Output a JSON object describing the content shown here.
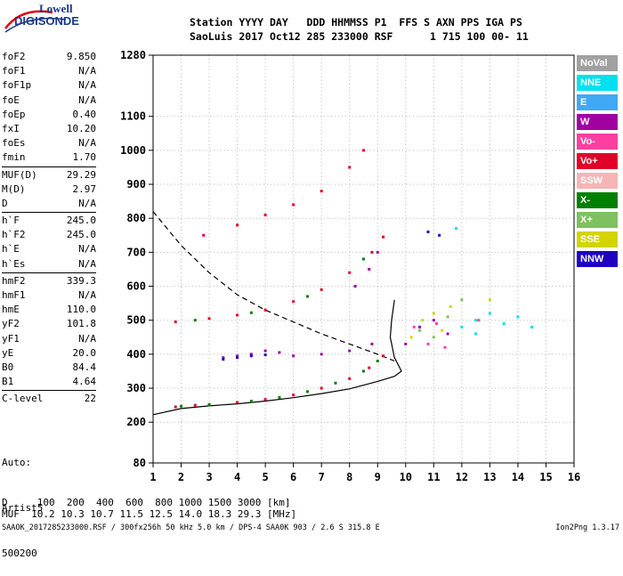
{
  "logo": {
    "line1": "Lowell",
    "line2": "DIGISONDE"
  },
  "header": {
    "line1": "Station YYYY DAY   DDD HHMMSS P1  FFS S AXN PPS IGA PS",
    "line2": "SaoLuis 2017 Oct12 285 233000 RSF      1 715 100 00- 11"
  },
  "params": [
    [
      [
        "foF2",
        "9.850"
      ],
      [
        "foF1",
        "N/A"
      ],
      [
        "foF1p",
        "N/A"
      ],
      [
        "foE",
        "N/A"
      ],
      [
        "foEp",
        "0.40"
      ],
      [
        "fxI",
        "10.20"
      ],
      [
        "foEs",
        "N/A"
      ],
      [
        "fmin",
        "1.70"
      ]
    ],
    [
      [
        "MUF(D)",
        "29.29"
      ],
      [
        "M(D)",
        "2.97"
      ],
      [
        "D",
        "N/A"
      ]
    ],
    [
      [
        "h`F",
        "245.0"
      ],
      [
        "h`F2",
        "245.0"
      ],
      [
        "h`E",
        "N/A"
      ],
      [
        "h`Es",
        "N/A"
      ]
    ],
    [
      [
        "hmF2",
        "339.3"
      ],
      [
        "hmF1",
        "N/A"
      ],
      [
        "hmE",
        "110.0"
      ],
      [
        "yF2",
        "101.8"
      ],
      [
        "yF1",
        "N/A"
      ],
      [
        "yE",
        "20.0"
      ],
      [
        "B0",
        "84.4"
      ],
      [
        "B1",
        "4.64"
      ]
    ],
    [
      [
        "C-level",
        "22"
      ]
    ]
  ],
  "footer_text": {
    "line1": "Auto:",
    "line2": "Artist5",
    "line3": "500200"
  },
  "legend": [
    {
      "label": "NoVal",
      "color": "#a0a0a0"
    },
    {
      "label": "NNE",
      "color": "#00e0f0"
    },
    {
      "label": "E",
      "color": "#3fa9f5"
    },
    {
      "label": "W",
      "color": "#a000a0"
    },
    {
      "label": "Vo-",
      "color": "#ff3fa0"
    },
    {
      "label": "Vo+",
      "color": "#e0002a"
    },
    {
      "label": "SSW",
      "color": "#f5b5b5"
    },
    {
      "label": "X-",
      "color": "#008000"
    },
    {
      "label": "X+",
      "color": "#80c060"
    },
    {
      "label": "SSE",
      "color": "#d4d400"
    },
    {
      "label": "NNW",
      "color": "#2000c0"
    }
  ],
  "muf_table": {
    "d_line": "D     100  200  400  600  800 1000 1500 3000 [km]",
    "muf_line": "MUF  10.2 10.3 10.7 11.5 12.5 14.0 18.3 29.3 [MHz]"
  },
  "status_left": "SAAOK_2017285233000.RSF / 300fx256h 50 kHz 5.0 km / DPS-4 SAA0K 903 / 2.6 S 315.8 E",
  "status_right": "Ion2Png 1.3.17",
  "chart_data": {
    "type": "scatter",
    "xlim": [
      1,
      16
    ],
    "ylim": [
      80,
      1280
    ],
    "x_ticks": [
      1,
      2,
      3,
      4,
      5,
      6,
      7,
      8,
      9,
      10,
      11,
      12,
      13,
      14,
      15,
      16
    ],
    "y_ticks": [
      80,
      200,
      300,
      400,
      500,
      600,
      700,
      800,
      900,
      1000,
      1100,
      1280
    ],
    "grid": "dotted",
    "series": [
      {
        "name": "Vo+",
        "color": "#e0002a",
        "points": [
          [
            1.8,
            245
          ],
          [
            2.5,
            250
          ],
          [
            3,
            252
          ],
          [
            4,
            258
          ],
          [
            5,
            267
          ],
          [
            6,
            280
          ],
          [
            7,
            300
          ],
          [
            8,
            328
          ],
          [
            8.7,
            360
          ],
          [
            9.2,
            395
          ],
          [
            1.8,
            495
          ],
          [
            3,
            505
          ],
          [
            4,
            515
          ],
          [
            5,
            530
          ],
          [
            6,
            555
          ],
          [
            7,
            590
          ],
          [
            8,
            640
          ],
          [
            8.8,
            700
          ],
          [
            9.2,
            745
          ],
          [
            2.8,
            750
          ],
          [
            4,
            780
          ],
          [
            5,
            810
          ],
          [
            6,
            840
          ],
          [
            7,
            880
          ],
          [
            8,
            950
          ],
          [
            8.5,
            1000
          ]
        ]
      },
      {
        "name": "X-",
        "color": "#008000",
        "points": [
          [
            2,
            247
          ],
          [
            3,
            251
          ],
          [
            4.5,
            262
          ],
          [
            5.5,
            273
          ],
          [
            6.5,
            290
          ],
          [
            7.5,
            315
          ],
          [
            8.5,
            350
          ],
          [
            9,
            380
          ],
          [
            2.5,
            500
          ],
          [
            4.5,
            522
          ],
          [
            6.5,
            570
          ],
          [
            8.5,
            680
          ]
        ]
      },
      {
        "name": "W",
        "color": "#a000a0",
        "points": [
          [
            3.5,
            390
          ],
          [
            4,
            395
          ],
          [
            4.5,
            400
          ],
          [
            5,
            410
          ],
          [
            5.5,
            405
          ],
          [
            6,
            395
          ],
          [
            7,
            400
          ],
          [
            8,
            410
          ],
          [
            8.8,
            430
          ],
          [
            8.2,
            600
          ],
          [
            8.7,
            650
          ],
          [
            9,
            700
          ],
          [
            10,
            430
          ],
          [
            10.5,
            480
          ],
          [
            11,
            500
          ],
          [
            11.5,
            460
          ]
        ]
      },
      {
        "name": "NNW",
        "color": "#2000c0",
        "points": [
          [
            3.5,
            385
          ],
          [
            4,
            390
          ],
          [
            4.5,
            395
          ],
          [
            5,
            398
          ],
          [
            10.8,
            760
          ],
          [
            11.2,
            750
          ]
        ]
      },
      {
        "name": "NNE",
        "color": "#00e0f0",
        "points": [
          [
            12,
            480
          ],
          [
            12.5,
            500
          ],
          [
            13,
            520
          ],
          [
            13.5,
            490
          ],
          [
            14,
            510
          ],
          [
            14.5,
            480
          ],
          [
            11.8,
            770
          ],
          [
            12.5,
            460
          ]
        ]
      },
      {
        "name": "SSE",
        "color": "#d4d400",
        "points": [
          [
            10.2,
            450
          ],
          [
            10.6,
            500
          ],
          [
            11,
            520
          ],
          [
            11.3,
            470
          ],
          [
            11.6,
            540
          ],
          [
            13,
            560
          ]
        ]
      },
      {
        "name": "Vo-",
        "color": "#ff3fa0",
        "points": [
          [
            10.3,
            480
          ],
          [
            10.8,
            430
          ],
          [
            11.1,
            490
          ],
          [
            11.4,
            420
          ],
          [
            12.6,
            500
          ]
        ]
      },
      {
        "name": "X+",
        "color": "#80c060",
        "points": [
          [
            10.5,
            470
          ],
          [
            11,
            450
          ],
          [
            11.5,
            510
          ],
          [
            12,
            560
          ]
        ]
      }
    ],
    "curves": [
      {
        "name": "model-solid",
        "style": "solid",
        "points": [
          [
            1,
            222
          ],
          [
            2,
            240
          ],
          [
            3,
            248
          ],
          [
            4,
            254
          ],
          [
            5,
            262
          ],
          [
            6,
            272
          ],
          [
            7,
            284
          ],
          [
            8,
            298
          ],
          [
            9,
            320
          ],
          [
            9.6,
            335
          ],
          [
            9.85,
            350
          ],
          [
            9.6,
            390
          ],
          [
            9.45,
            450
          ],
          [
            9.5,
            500
          ],
          [
            9.6,
            560
          ]
        ]
      },
      {
        "name": "model-dashed",
        "style": "dashed",
        "points": [
          [
            1,
            820
          ],
          [
            2,
            720
          ],
          [
            3,
            640
          ],
          [
            4,
            575
          ],
          [
            5,
            530
          ],
          [
            6,
            495
          ],
          [
            7,
            460
          ],
          [
            8,
            430
          ],
          [
            9,
            400
          ],
          [
            9.6,
            380
          ]
        ]
      }
    ]
  }
}
